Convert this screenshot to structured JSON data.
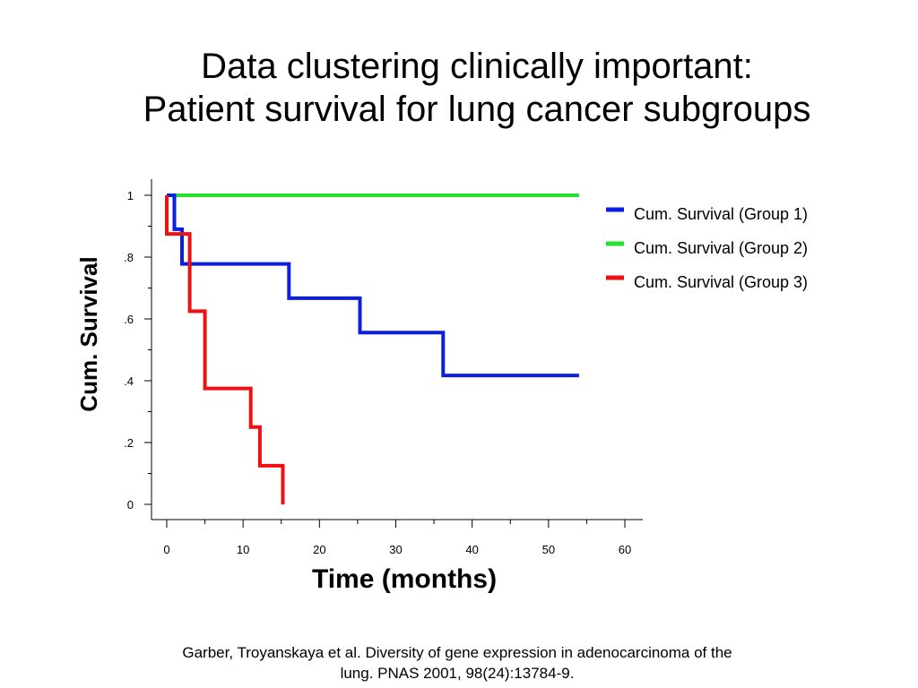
{
  "slide": {
    "title_line1": "Data clustering clinically important:",
    "title_line2": "Patient survival for lung cancer subgroups",
    "citation_line1": "Garber, Troyanskaya et al. Diversity of gene expression in adenocarcinoma of the",
    "citation_line2": "lung. PNAS 2001, 98(24):13784-9."
  },
  "chart_data": {
    "type": "line",
    "step": true,
    "xlabel": "Time (months)",
    "ylabel": "Cum. Survival",
    "xlim": [
      0,
      60
    ],
    "ylim": [
      0,
      1
    ],
    "x_ticks": [
      0,
      10,
      20,
      30,
      40,
      50,
      60
    ],
    "x_tick_labels": [
      "0",
      "10",
      "20",
      "30",
      "40",
      "50",
      "60"
    ],
    "y_ticks": [
      0,
      0.2,
      0.4,
      0.6,
      0.8,
      1
    ],
    "y_tick_labels": [
      "0",
      ".2",
      ".4",
      ".6",
      ".8",
      "1"
    ],
    "grid": false,
    "legend_position": "right",
    "series": [
      {
        "name": "Cum. Survival (Group 1)",
        "color": "#0b1fe0",
        "points": [
          [
            0,
            1
          ],
          [
            1,
            1
          ],
          [
            1,
            0.89
          ],
          [
            2,
            0.89
          ],
          [
            2,
            0.778
          ],
          [
            16,
            0.778
          ],
          [
            16,
            0.667
          ],
          [
            25.3,
            0.667
          ],
          [
            25.3,
            0.556
          ],
          [
            36.2,
            0.556
          ],
          [
            36.2,
            0.417
          ],
          [
            54,
            0.417
          ]
        ]
      },
      {
        "name": "Cum. Survival (Group 2)",
        "color": "#22e22e",
        "points": [
          [
            0,
            1
          ],
          [
            54,
            1
          ]
        ]
      },
      {
        "name": "Cum. Survival (Group 3)",
        "color": "#ee1111",
        "points": [
          [
            0,
            1
          ],
          [
            0,
            0.875
          ],
          [
            3,
            0.875
          ],
          [
            3,
            0.625
          ],
          [
            5,
            0.625
          ],
          [
            5,
            0.375
          ],
          [
            11,
            0.375
          ],
          [
            11,
            0.25
          ],
          [
            12.2,
            0.25
          ],
          [
            12.2,
            0.125
          ],
          [
            15.2,
            0.125
          ],
          [
            15.2,
            0
          ]
        ]
      }
    ]
  }
}
